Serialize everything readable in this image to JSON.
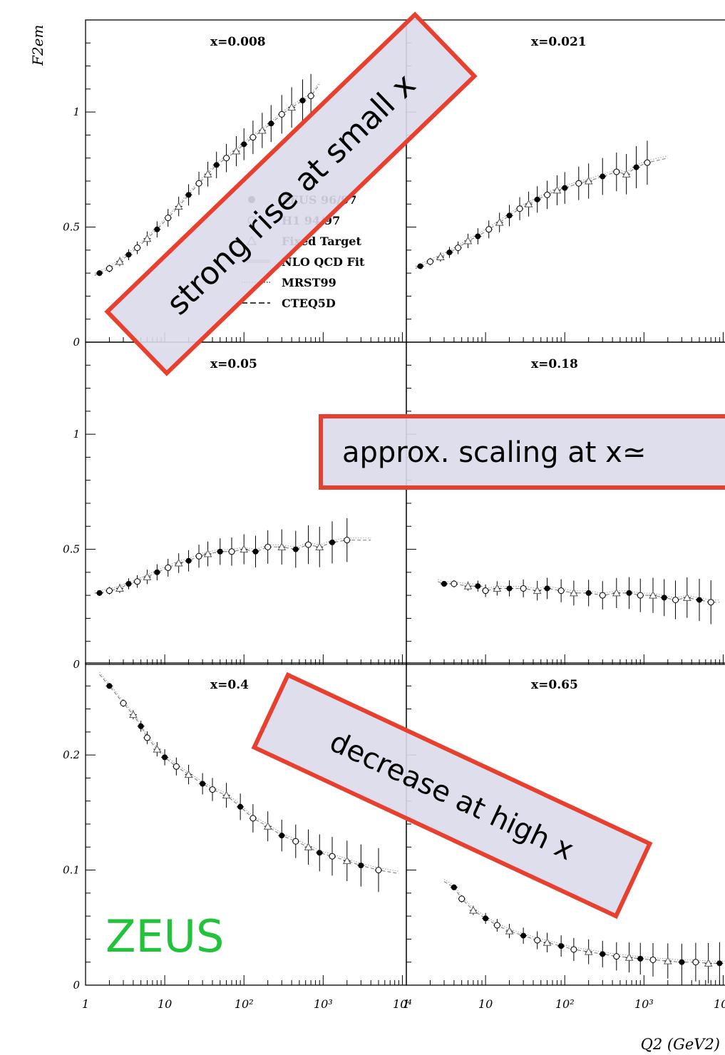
{
  "chart_data": {
    "type": "scatter",
    "y_axis_label": "F2em",
    "x_axis_label": "Q2 (GeV2)",
    "x_scale": "log",
    "x_ticks": [
      "1",
      "10",
      "10²",
      "10³",
      "10⁴"
    ],
    "watermark": "ZEUS",
    "legend": [
      {
        "name": "ZEUS 96/97",
        "marker": "filled-circle"
      },
      {
        "name": "H1 94/97",
        "marker": "open-circle"
      },
      {
        "name": "Fixed Target",
        "marker": "triangle"
      },
      {
        "name": "NLO QCD Fit",
        "marker": "band"
      },
      {
        "name": "MRST99",
        "marker": "dotted-line"
      },
      {
        "name": "CTEQ5D",
        "marker": "dashed-line"
      }
    ],
    "panels": [
      {
        "id": "x0008",
        "label": "x=0.008",
        "yticks": [
          "0",
          "0.5",
          "1"
        ],
        "ylim": [
          0,
          1.4
        ],
        "points": [
          [
            1.5,
            0.3
          ],
          [
            2,
            0.32
          ],
          [
            2.7,
            0.35
          ],
          [
            3.5,
            0.38
          ],
          [
            4.5,
            0.41
          ],
          [
            6,
            0.45
          ],
          [
            8,
            0.49
          ],
          [
            11,
            0.54
          ],
          [
            15,
            0.59
          ],
          [
            20,
            0.64
          ],
          [
            27,
            0.69
          ],
          [
            35,
            0.73
          ],
          [
            45,
            0.77
          ],
          [
            60,
            0.8
          ],
          [
            80,
            0.83
          ],
          [
            100,
            0.86
          ],
          [
            130,
            0.89
          ],
          [
            170,
            0.92
          ],
          [
            220,
            0.95
          ],
          [
            300,
            0.99
          ],
          [
            400,
            1.02
          ],
          [
            550,
            1.05
          ],
          [
            700,
            1.07
          ]
        ],
        "fit": [
          [
            1.3,
            0.29
          ],
          [
            900,
            1.12
          ]
        ]
      },
      {
        "id": "x0021",
        "label": "x=0.021",
        "yticks": [],
        "ylim": [
          0,
          1.4
        ],
        "points": [
          [
            1.5,
            0.33
          ],
          [
            2,
            0.35
          ],
          [
            2.7,
            0.37
          ],
          [
            3.5,
            0.39
          ],
          [
            4.5,
            0.41
          ],
          [
            6,
            0.44
          ],
          [
            8,
            0.46
          ],
          [
            11,
            0.49
          ],
          [
            15,
            0.52
          ],
          [
            20,
            0.55
          ],
          [
            27,
            0.58
          ],
          [
            35,
            0.6
          ],
          [
            45,
            0.62
          ],
          [
            60,
            0.64
          ],
          [
            80,
            0.66
          ],
          [
            100,
            0.67
          ],
          [
            150,
            0.69
          ],
          [
            200,
            0.7
          ],
          [
            300,
            0.72
          ],
          [
            450,
            0.74
          ],
          [
            600,
            0.73
          ],
          [
            800,
            0.76
          ],
          [
            1100,
            0.78
          ]
        ],
        "fit": [
          [
            1.3,
            0.32
          ],
          [
            2000,
            0.8
          ]
        ]
      },
      {
        "id": "x005",
        "label": "x=0.05",
        "yticks": [
          "0",
          "0.5",
          "1"
        ],
        "ylim": [
          0,
          1.4
        ],
        "points": [
          [
            1.5,
            0.31
          ],
          [
            2,
            0.32
          ],
          [
            2.7,
            0.33
          ],
          [
            3.5,
            0.35
          ],
          [
            4.5,
            0.36
          ],
          [
            6,
            0.38
          ],
          [
            8,
            0.4
          ],
          [
            11,
            0.42
          ],
          [
            15,
            0.44
          ],
          [
            20,
            0.45
          ],
          [
            27,
            0.47
          ],
          [
            35,
            0.48
          ],
          [
            50,
            0.49
          ],
          [
            70,
            0.49
          ],
          [
            100,
            0.5
          ],
          [
            140,
            0.49
          ],
          [
            200,
            0.51
          ],
          [
            300,
            0.51
          ],
          [
            450,
            0.5
          ],
          [
            650,
            0.52
          ],
          [
            900,
            0.51
          ],
          [
            1300,
            0.53
          ],
          [
            2000,
            0.54
          ]
        ],
        "fit": [
          [
            1.3,
            0.31
          ],
          [
            4000,
            0.54
          ]
        ]
      },
      {
        "id": "x018",
        "label": "x=0.18",
        "yticks": [],
        "ylim": [
          0,
          1.4
        ],
        "points": [
          [
            3,
            0.35
          ],
          [
            4,
            0.35
          ],
          [
            6,
            0.34
          ],
          [
            8,
            0.34
          ],
          [
            10,
            0.32
          ],
          [
            14,
            0.33
          ],
          [
            20,
            0.33
          ],
          [
            30,
            0.33
          ],
          [
            45,
            0.32
          ],
          [
            60,
            0.33
          ],
          [
            90,
            0.32
          ],
          [
            130,
            0.31
          ],
          [
            200,
            0.31
          ],
          [
            300,
            0.3
          ],
          [
            450,
            0.31
          ],
          [
            650,
            0.31
          ],
          [
            900,
            0.3
          ],
          [
            1300,
            0.3
          ],
          [
            1800,
            0.29
          ],
          [
            2500,
            0.28
          ],
          [
            3500,
            0.29
          ],
          [
            5000,
            0.28
          ],
          [
            7000,
            0.27
          ]
        ],
        "fit": [
          [
            2.5,
            0.36
          ],
          [
            9000,
            0.27
          ]
        ]
      },
      {
        "id": "x04",
        "label": "x=0.4",
        "yticks": [
          "0",
          "0.1",
          "0.2"
        ],
        "ylim": [
          0,
          0.28
        ],
        "points": [
          [
            2,
            0.26
          ],
          [
            3,
            0.245
          ],
          [
            4,
            0.235
          ],
          [
            5,
            0.225
          ],
          [
            6,
            0.215
          ],
          [
            8,
            0.205
          ],
          [
            10,
            0.198
          ],
          [
            14,
            0.19
          ],
          [
            20,
            0.183
          ],
          [
            30,
            0.175
          ],
          [
            40,
            0.17
          ],
          [
            60,
            0.165
          ],
          [
            90,
            0.155
          ],
          [
            130,
            0.145
          ],
          [
            200,
            0.138
          ],
          [
            300,
            0.13
          ],
          [
            450,
            0.125
          ],
          [
            650,
            0.12
          ],
          [
            900,
            0.115
          ],
          [
            1300,
            0.112
          ],
          [
            2000,
            0.108
          ],
          [
            3000,
            0.104
          ],
          [
            5000,
            0.1
          ]
        ],
        "fit": [
          [
            1.5,
            0.27
          ],
          [
            9000,
            0.097
          ]
        ]
      },
      {
        "id": "x065",
        "label": "x=0.65",
        "yticks": [],
        "ylim": [
          0,
          0.28
        ],
        "points": [
          [
            4,
            0.085
          ],
          [
            5,
            0.075
          ],
          [
            7,
            0.065
          ],
          [
            10,
            0.058
          ],
          [
            14,
            0.052
          ],
          [
            20,
            0.047
          ],
          [
            30,
            0.043
          ],
          [
            45,
            0.039
          ],
          [
            60,
            0.037
          ],
          [
            90,
            0.034
          ],
          [
            130,
            0.031
          ],
          [
            200,
            0.029
          ],
          [
            300,
            0.027
          ],
          [
            450,
            0.025
          ],
          [
            650,
            0.024
          ],
          [
            900,
            0.023
          ],
          [
            1300,
            0.022
          ],
          [
            2000,
            0.021
          ],
          [
            3000,
            0.02
          ],
          [
            4500,
            0.02
          ],
          [
            6500,
            0.019
          ],
          [
            9000,
            0.019
          ],
          [
            12000,
            0.019
          ]
        ],
        "fit": [
          [
            3,
            0.09
          ],
          [
            15000,
            0.018
          ]
        ]
      }
    ]
  },
  "annotations": {
    "small_x": "strong rise at small x",
    "scaling": "approx. scaling at x≃",
    "high_x": "decrease at high x"
  },
  "colors": {
    "box_fill": "#dcdaeb",
    "box_border": "#e8402f",
    "zeus_green": "#22c23a",
    "ink": "#000000"
  }
}
